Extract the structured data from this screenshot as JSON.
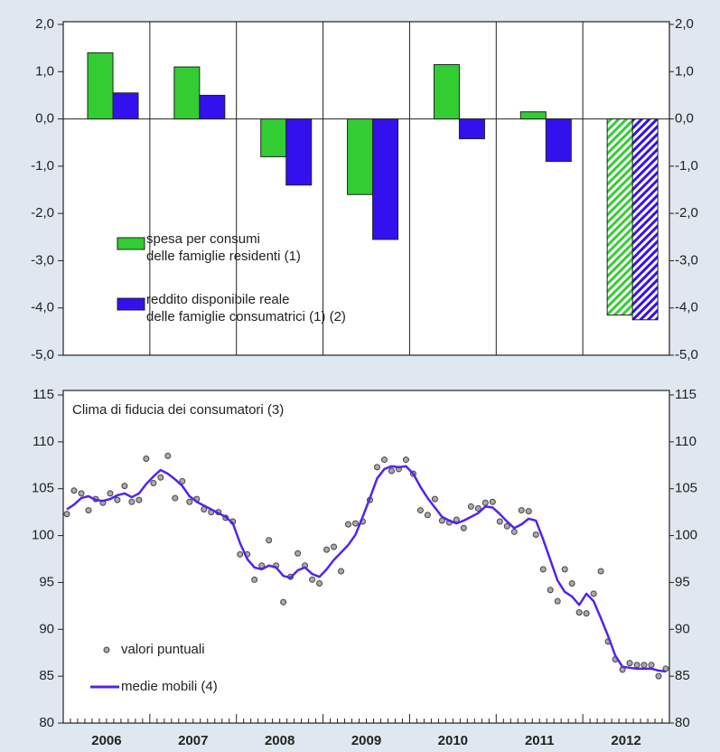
{
  "chart_data": [
    {
      "type": "bar",
      "series": [
        {
          "name": "spesa per consumi\ndelle famiglie residenti (1)",
          "color": "#33cc33",
          "values": [
            1.4,
            1.1,
            -0.8,
            -1.6,
            1.15,
            0.15,
            -4.15
          ]
        },
        {
          "name": "reddito disponibile reale\ndelle famiglie consumatrici (1) (2)",
          "color": "#3311ee",
          "values": [
            0.55,
            0.5,
            -1.4,
            -2.55,
            -0.42,
            -0.9,
            -4.25
          ]
        }
      ],
      "hatched": [
        false,
        false,
        false,
        false,
        false,
        false,
        true
      ],
      "ylim": [
        -5,
        2
      ],
      "yticks": [
        {
          "value": -5,
          "label": "-5,0"
        },
        {
          "value": -4,
          "label": "-4,0"
        },
        {
          "value": -3,
          "label": "-3,0"
        },
        {
          "value": -2,
          "label": "-2,0"
        },
        {
          "value": -1,
          "label": "-1,0"
        },
        {
          "value": 0,
          "label": "0,0"
        },
        {
          "value": 1,
          "label": "1,0"
        },
        {
          "value": 2,
          "label": "2,0"
        }
      ],
      "grid": false
    },
    {
      "type": "line",
      "title": "Clima di fiducia dei consumatori (3)",
      "categories": [
        null,
        null,
        null,
        null,
        null,
        "2006",
        null,
        null,
        null,
        null,
        null,
        null,
        null,
        null,
        null,
        null,
        null,
        "2007",
        null,
        null,
        null,
        null,
        null,
        null,
        null,
        null,
        null,
        null,
        null,
        "2008",
        null,
        null,
        null,
        null,
        null,
        null,
        null,
        null,
        null,
        null,
        null,
        "2009",
        null,
        null,
        null,
        null,
        null,
        null,
        null,
        null,
        null,
        null,
        null,
        "2010",
        null,
        null,
        null,
        null,
        null,
        null,
        null,
        null,
        null,
        null,
        null,
        "2011",
        null,
        null,
        null,
        null,
        null,
        null,
        null,
        null,
        null,
        null,
        null,
        "2012",
        null,
        null,
        null,
        null,
        null,
        null
      ],
      "series": [
        {
          "name": "valori puntuali",
          "color": "#aaaaaa",
          "style": "markers",
          "values": [
            102.3,
            104.8,
            104.5,
            102.7,
            103.9,
            103.5,
            104.5,
            103.8,
            105.3,
            103.6,
            103.8,
            108.2,
            105.6,
            106.2,
            108.5,
            104.0,
            105.8,
            103.6,
            103.9,
            102.8,
            102.5,
            102.5,
            101.9,
            101.5,
            98.0,
            98.0,
            95.3,
            96.8,
            99.5,
            96.8,
            92.9,
            95.6,
            98.1,
            96.8,
            95.3,
            94.9,
            98.5,
            98.8,
            96.2,
            101.2,
            101.3,
            101.5,
            103.8,
            107.3,
            108.1,
            106.9,
            107.1,
            108.1,
            106.6,
            102.7,
            102.2,
            103.9,
            101.6,
            101.4,
            101.7,
            100.8,
            103.1,
            102.9,
            103.5,
            103.6,
            101.5,
            101.0,
            100.4,
            102.7,
            102.6,
            100.1,
            96.4,
            94.2,
            93.0,
            96.4,
            94.9,
            91.8,
            91.7,
            93.8,
            96.2,
            88.7,
            86.8,
            85.7,
            86.4,
            86.2,
            86.2,
            86.2,
            85.0,
            85.8
          ]
        },
        {
          "name": "medie mobili (4)",
          "color": "#5522ee",
          "style": "line",
          "values": [
            102.8,
            103.3,
            104.0,
            104.2,
            103.8,
            103.7,
            103.9,
            104.3,
            104.5,
            104.1,
            104.5,
            105.5,
            106.3,
            107.0,
            106.6,
            106.0,
            105.3,
            104.2,
            103.6,
            103.2,
            102.8,
            102.4,
            102.0,
            101.3,
            99.2,
            97.5,
            96.6,
            96.4,
            96.8,
            96.6,
            95.7,
            95.5,
            96.3,
            96.6,
            95.9,
            95.6,
            96.4,
            97.4,
            98.2,
            99.0,
            100.1,
            102.0,
            104.0,
            106.1,
            107.1,
            107.4,
            107.3,
            107.4,
            106.6,
            105.2,
            104.0,
            103.0,
            102.0,
            101.6,
            101.3,
            101.6,
            102.0,
            102.4,
            103.1,
            103.0,
            102.3,
            101.5,
            100.8,
            101.2,
            101.8,
            101.6,
            99.6,
            97.4,
            95.2,
            94.0,
            93.5,
            92.6,
            93.8,
            93.0,
            91.2,
            89.3,
            87.2,
            86.0,
            85.9,
            85.8,
            85.8,
            85.8,
            85.6,
            85.5
          ]
        }
      ],
      "ylim": [
        80,
        115
      ],
      "yticks": [
        80,
        85,
        90,
        95,
        100,
        105,
        110,
        115
      ],
      "grid": false
    }
  ]
}
